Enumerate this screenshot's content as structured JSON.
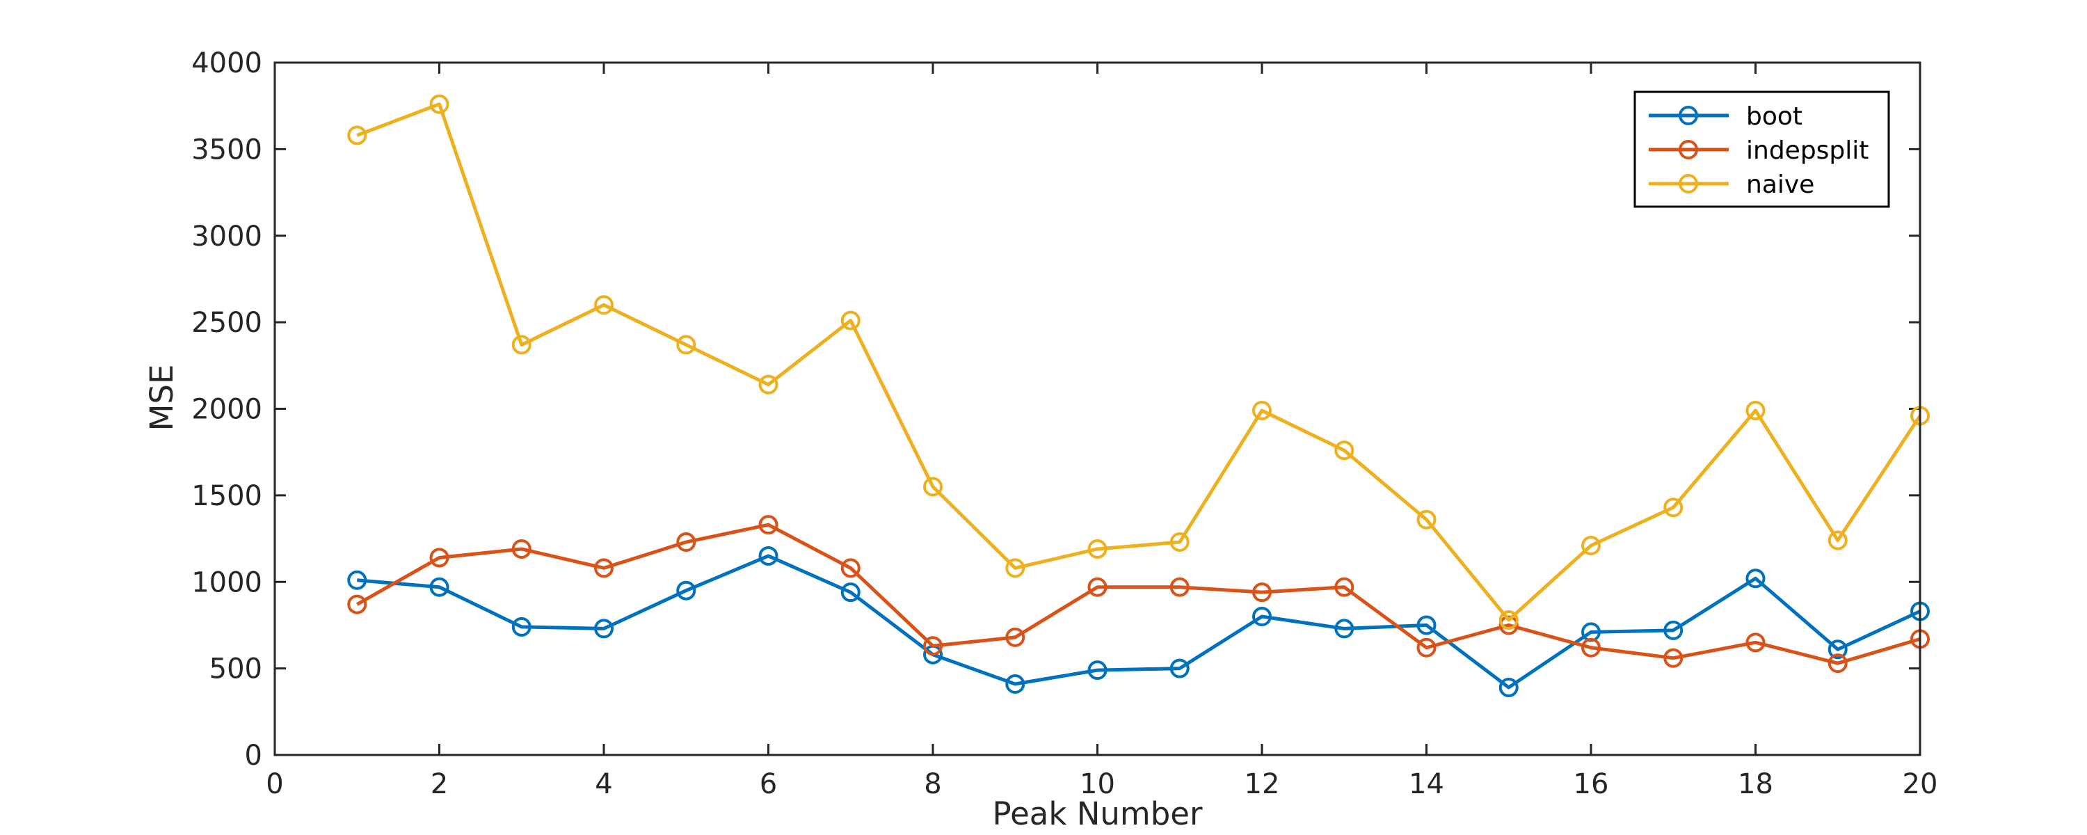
{
  "chart_data": {
    "type": "line",
    "xlabel": "Peak Number",
    "ylabel": "MSE",
    "xlim": [
      0,
      20
    ],
    "ylim": [
      0,
      4000
    ],
    "xticks": [
      0,
      2,
      4,
      6,
      8,
      10,
      12,
      14,
      16,
      18,
      20
    ],
    "yticks": [
      0,
      500,
      1000,
      1500,
      2000,
      2500,
      3000,
      3500,
      4000
    ],
    "grid": false,
    "legend_position": "top-right",
    "marker": "circle",
    "x": [
      1,
      2,
      3,
      4,
      5,
      6,
      7,
      8,
      9,
      10,
      11,
      12,
      13,
      14,
      15,
      16,
      17,
      18,
      19,
      20
    ],
    "series": [
      {
        "name": "boot",
        "color": "#0072BD",
        "values": [
          1010,
          970,
          740,
          730,
          950,
          1150,
          940,
          580,
          410,
          490,
          500,
          800,
          730,
          750,
          390,
          710,
          720,
          1020,
          610,
          830
        ]
      },
      {
        "name": "indepsplit",
        "color": "#D95319",
        "values": [
          870,
          1140,
          1190,
          1080,
          1230,
          1330,
          1080,
          630,
          680,
          970,
          970,
          940,
          970,
          620,
          750,
          620,
          560,
          650,
          530,
          670
        ]
      },
      {
        "name": "naive",
        "color": "#EDB120",
        "values": [
          3580,
          3760,
          2370,
          2600,
          2370,
          2140,
          2510,
          1550,
          1080,
          1190,
          1230,
          1990,
          1760,
          1360,
          780,
          1210,
          1430,
          1990,
          1240,
          1960
        ]
      }
    ]
  }
}
